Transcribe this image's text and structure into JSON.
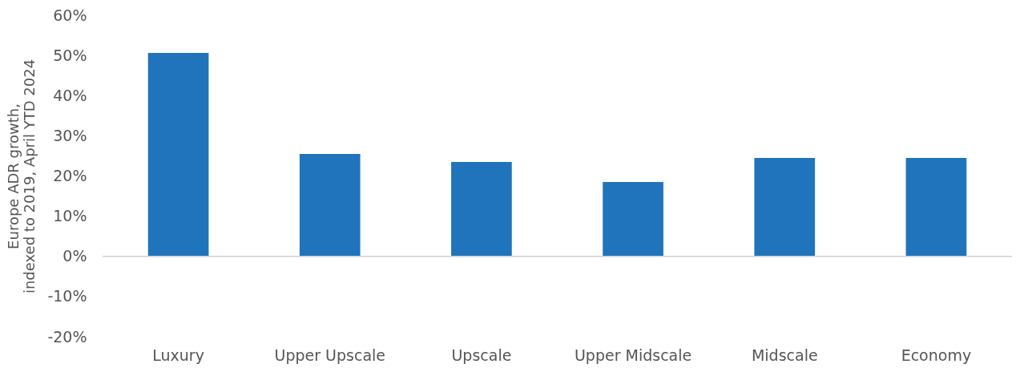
{
  "chart_data": {
    "type": "bar",
    "ylabel": "Europe ADR growth, indexed to 2019, April YTD 2024",
    "categories": [
      "Luxury",
      "Upper Upscale",
      "Upscale",
      "Upper Midscale",
      "Midscale",
      "Economy"
    ],
    "values": [
      50.6,
      25.5,
      23.5,
      18.5,
      24.5,
      24.5
    ],
    "color": "#1f74bb",
    "ylim": [
      -20,
      60
    ],
    "yticks": [
      {
        "value": -20,
        "label": "-20%"
      },
      {
        "value": -10,
        "label": "-10%"
      },
      {
        "value": 0,
        "label": "0%"
      },
      {
        "value": 10,
        "label": "10%"
      },
      {
        "value": 20,
        "label": "20%"
      },
      {
        "value": 30,
        "label": "30%"
      },
      {
        "value": 40,
        "label": "40%"
      },
      {
        "value": 50,
        "label": "50%"
      },
      {
        "value": 60,
        "label": "60%"
      }
    ],
    "data_labels": false
  }
}
